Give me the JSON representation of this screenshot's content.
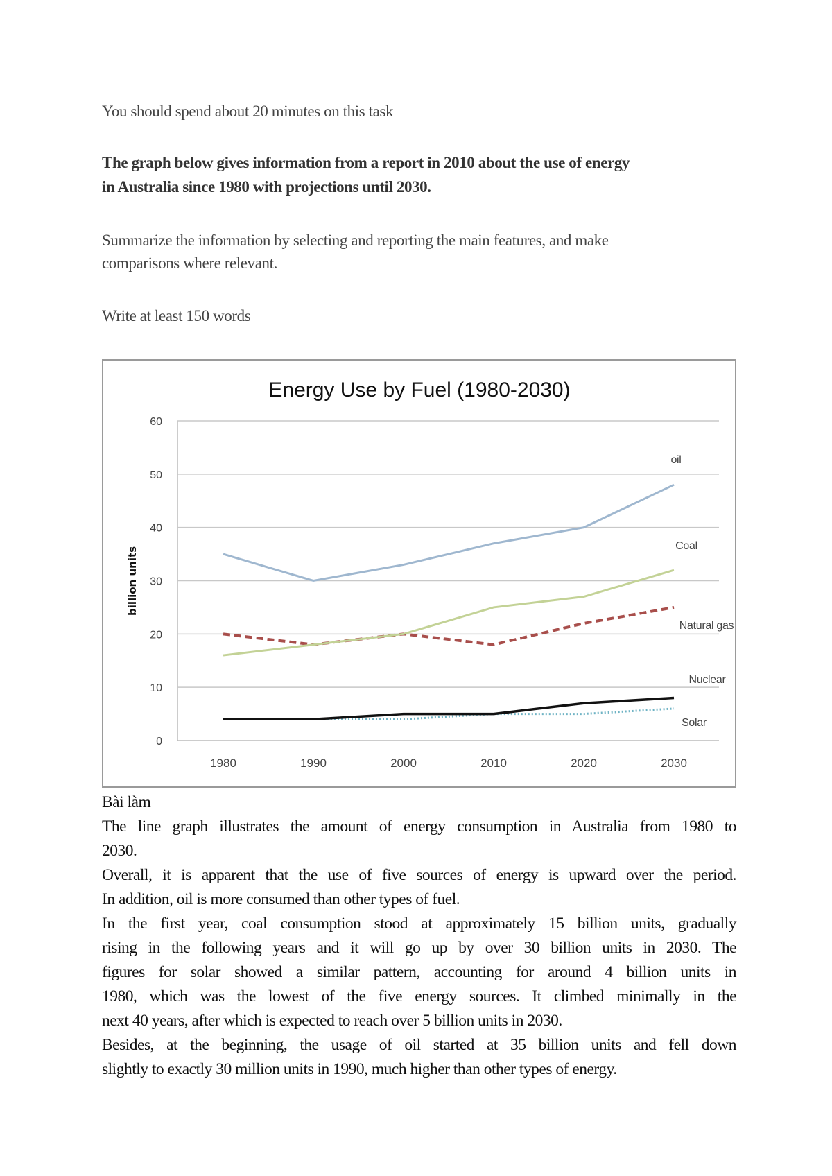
{
  "instructions": {
    "time": "You should spend about 20 minutes on this task",
    "prompt_lines": [
      "The graph below gives information from a report in 2010 about the use of energy",
      "in Australia since 1980 with projections until 2030."
    ],
    "summary_lines": [
      "Summarize the information by selecting and reporting the main features, and make",
      "comparisons where relevant."
    ],
    "word_count": "Write at least 150 words"
  },
  "chart_data": {
    "type": "line",
    "title": "Energy Use by Fuel (1980-2030)",
    "xlabel": "",
    "ylabel": "billion units",
    "x": [
      1980,
      1990,
      2000,
      2010,
      2020,
      2030
    ],
    "x_tick_labels": [
      "1980",
      "1990",
      "2000",
      "2010",
      "2020",
      "2030"
    ],
    "y_tick_labels": [
      "0",
      "10",
      "20",
      "30",
      "40",
      "50",
      "60"
    ],
    "ylim": [
      0,
      60
    ],
    "grid": "horizontal",
    "legend": "inline labels at right",
    "series": [
      {
        "name": "oil",
        "values": [
          35,
          30,
          33,
          37,
          40,
          48
        ],
        "color": "#9fb7cf",
        "style": "solid"
      },
      {
        "name": "Coal",
        "values": [
          16,
          18,
          20,
          25,
          27,
          32
        ],
        "color": "#c3d296",
        "style": "solid"
      },
      {
        "name": "Natural gas",
        "values": [
          20,
          18,
          20,
          18,
          22,
          25
        ],
        "color": "#a84e4b",
        "style": "dashed"
      },
      {
        "name": "Nuclear",
        "values": [
          4,
          4,
          5,
          5,
          7,
          8
        ],
        "color": "#111111",
        "style": "solid"
      },
      {
        "name": "Solar",
        "values": [
          4,
          4,
          4,
          5,
          5,
          6
        ],
        "color": "#6fb3c4",
        "style": "dotted"
      }
    ]
  },
  "essay": {
    "heading": "Bài làm",
    "paragraphs": [
      [
        "The line graph illustrates the amount of energy consumption in Australia from 1980 to",
        "2030."
      ],
      [
        "Overall, it is apparent that the use of five sources of energy is upward over the period.",
        "In addition, oil is more consumed than other types of fuel."
      ],
      [
        "In the first year, coal consumption stood at approximately 15 billion units, gradually",
        "rising in the following years and it will go up by over 30 billion units in 2030. The",
        "figures for solar showed a similar pattern, accounting for around 4 billion units in",
        "1980, which was the lowest of the five energy sources. It climbed minimally in the",
        "next 40 years, after which is expected to reach over 5 billion units in 2030."
      ],
      [
        "Besides, at the beginning, the usage of oil started at 35 billion units and fell down",
        "slightly to exactly 30 million units in 1990, much higher than other types of energy."
      ]
    ]
  }
}
